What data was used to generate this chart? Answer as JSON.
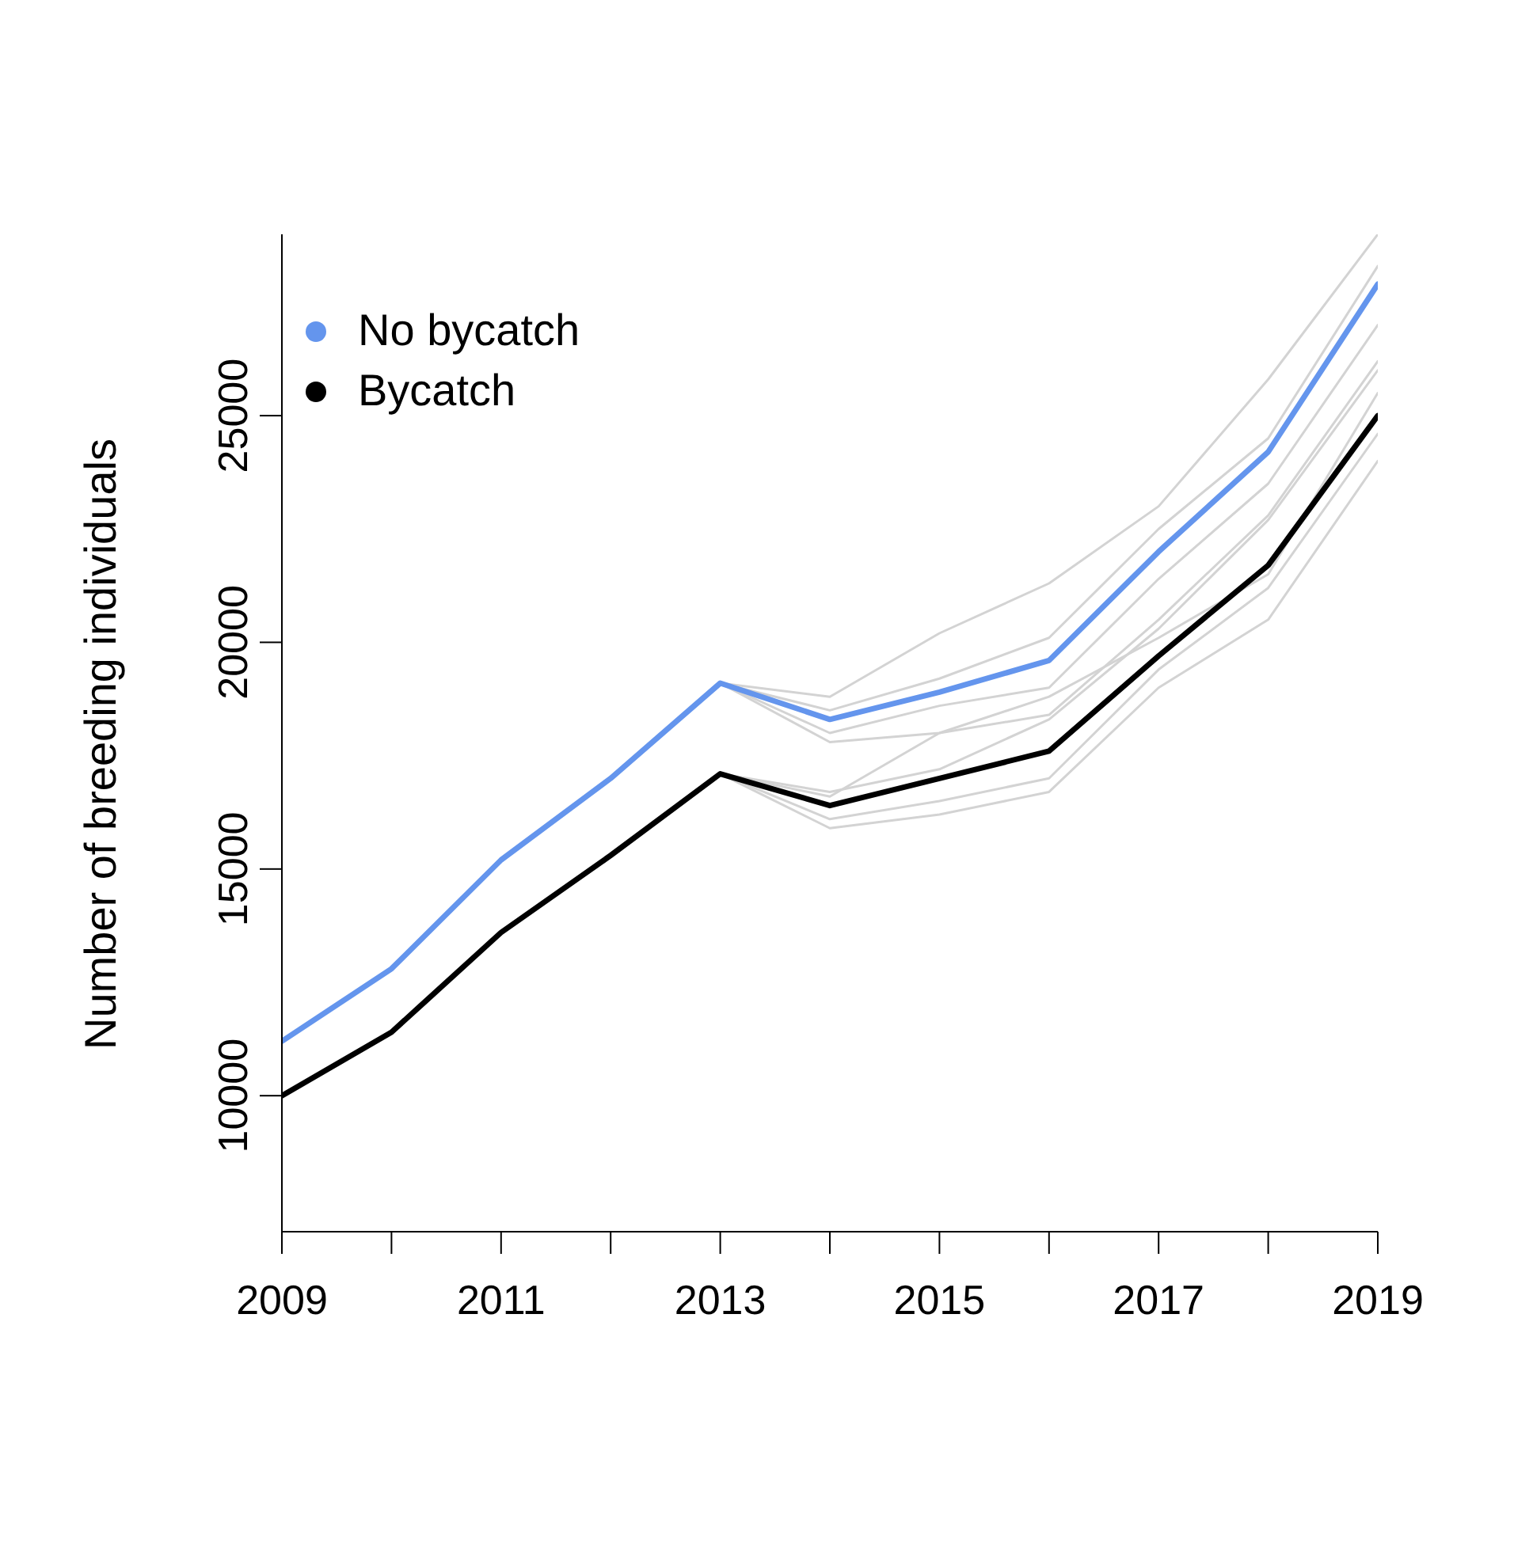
{
  "chart_data": {
    "type": "line",
    "ylabel": "Number of breeding individuals",
    "x": [
      2009,
      2010,
      2011,
      2012,
      2013,
      2014,
      2015,
      2016,
      2017,
      2018,
      2019
    ],
    "xlim": [
      2009,
      2019
    ],
    "xticks": [
      2009,
      {
        "value": 2010,
        "label": null
      },
      2011,
      {
        "value": 2012,
        "label": null
      },
      2013,
      {
        "value": 2014,
        "label": null
      },
      2015,
      {
        "value": 2016,
        "label": null
      },
      2017,
      {
        "value": 2018,
        "label": null
      },
      2019
    ],
    "ylim": [
      7000,
      29000
    ],
    "yticks": [
      10000,
      15000,
      20000,
      25000
    ],
    "legend": "top left",
    "marker": "none",
    "line_style": "solid",
    "grid": false,
    "series": [
      {
        "color": "#d3d3d3",
        "values": [
          null,
          null,
          null,
          null,
          19100,
          18800,
          20200,
          21300,
          23000,
          25800,
          29000
        ]
      },
      {
        "color": "#d3d3d3",
        "values": [
          null,
          null,
          null,
          null,
          19100,
          18500,
          19200,
          20100,
          22500,
          24500,
          28300
        ]
      },
      {
        "color": "#d3d3d3",
        "values": [
          null,
          null,
          null,
          null,
          19100,
          18000,
          18600,
          19000,
          21400,
          23500,
          27000
        ]
      },
      {
        "color": "#d3d3d3",
        "values": [
          null,
          null,
          null,
          null,
          19100,
          17800,
          18000,
          18400,
          20500,
          22800,
          26200
        ]
      },
      {
        "color": "#d3d3d3",
        "values": [
          null,
          null,
          null,
          null,
          17100,
          16700,
          17200,
          18300,
          20300,
          22700,
          26000
        ]
      },
      {
        "color": "#d3d3d3",
        "values": [
          null,
          null,
          null,
          null,
          17100,
          16600,
          18000,
          18800,
          20100,
          21500,
          25500
        ]
      },
      {
        "color": "#d3d3d3",
        "values": [
          null,
          null,
          null,
          null,
          17100,
          16100,
          16500,
          17000,
          19400,
          21200,
          24600
        ]
      },
      {
        "color": "#d3d3d3",
        "values": [
          null,
          null,
          null,
          null,
          17100,
          15900,
          16200,
          16700,
          19000,
          20500,
          24000
        ]
      },
      {
        "name": "No bycatch",
        "color": "#6495ed",
        "values": [
          11200,
          12800,
          15200,
          17000,
          19100,
          18300,
          18900,
          19600,
          22000,
          24200,
          27900
        ]
      },
      {
        "name": "Bycatch",
        "color": "#000000",
        "values": [
          10000,
          11400,
          13600,
          15300,
          17100,
          16400,
          17000,
          17600,
          19700,
          21700,
          25000
        ]
      }
    ]
  }
}
